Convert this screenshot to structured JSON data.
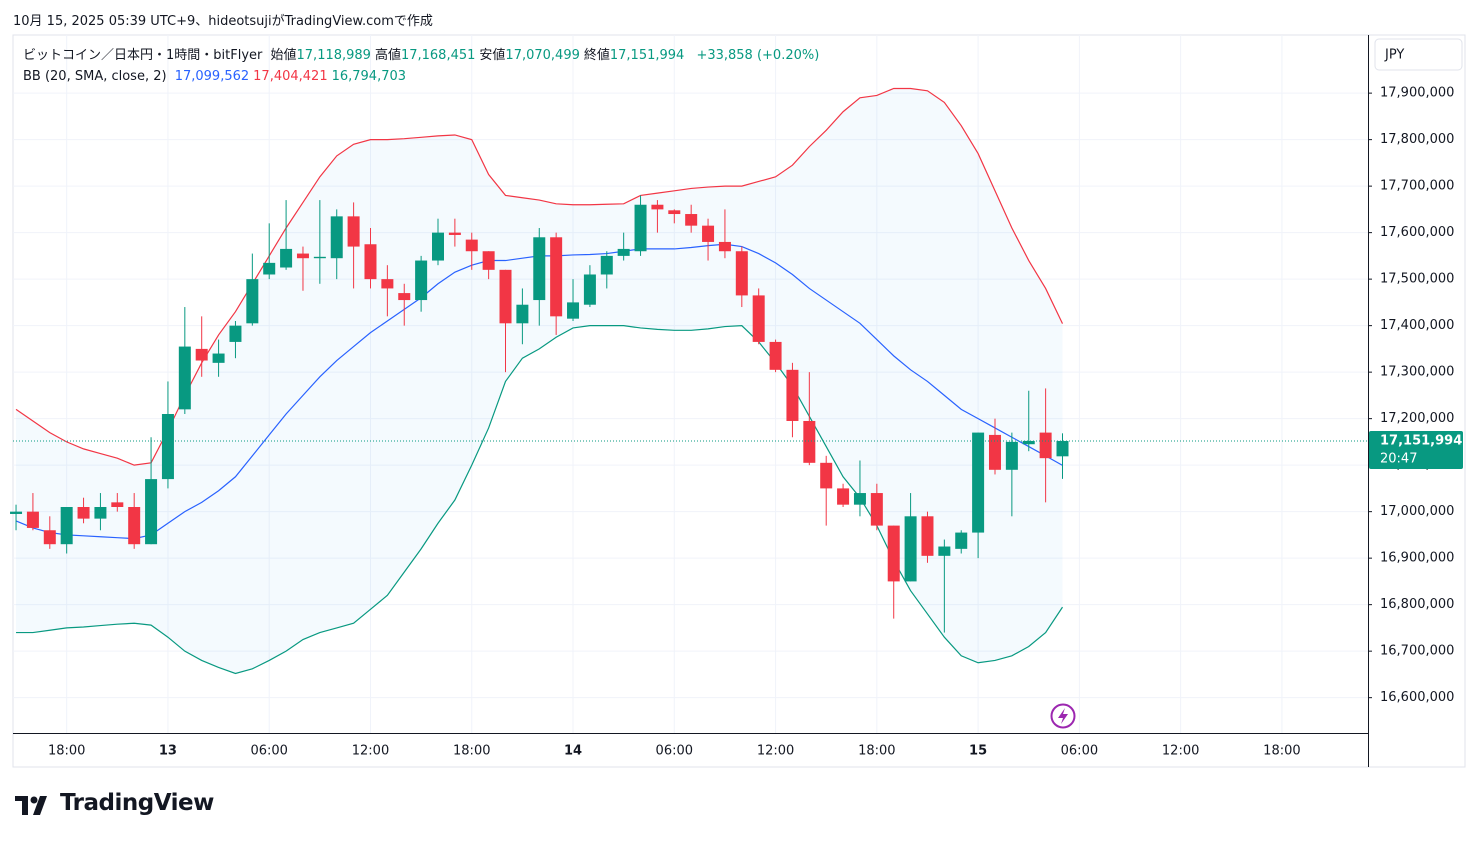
{
  "header": "10月 15, 2025 05:39 UTC+9、hideotsujiがTradingView.comで作成",
  "footer_logo": "TradingView",
  "chart_data": {
    "type": "candlestick",
    "title": "ビットコイン／日本円・1時間・bitFlyer",
    "ohlc_legend": [
      {
        "name": "始値",
        "label": "17,118,989"
      },
      {
        "name": "高値",
        "label": "17,168,451"
      },
      {
        "name": "安値",
        "label": "17,070,499"
      },
      {
        "name": "終値",
        "label": "17,151,994"
      }
    ],
    "change_label": "+33,858 (+0.20%)",
    "currency": "JPY",
    "open": [
      16995000,
      17000000,
      16960000,
      16930000,
      17010000,
      16985000,
      17020000,
      17010000,
      16930000,
      17070000,
      17220000,
      17350000,
      17320000,
      17365000,
      17405000,
      17510000,
      17525000,
      17555000,
      17545000,
      17545000,
      17635000,
      17575000,
      17500000,
      17470000,
      17455000,
      17540000,
      17600000,
      17585000,
      17560000,
      17520000,
      17405000,
      17455000,
      17590000,
      17415000,
      17445000,
      17510000,
      17550000,
      17560000,
      17660000,
      17648000,
      17640000,
      17615000,
      17580000,
      17560000,
      17465000,
      17365000,
      17305000,
      17195000,
      17105000,
      17050000,
      17015000,
      17040000,
      16970000,
      16850000,
      16990000,
      16905000,
      16920000,
      16955000,
      17165000,
      17090000,
      17145000,
      17170000,
      17118989
    ],
    "high": [
      17015000,
      17040000,
      16990000,
      17010000,
      17030000,
      17040000,
      17040000,
      17040000,
      17160000,
      17280000,
      17440000,
      17420000,
      17370000,
      17410000,
      17555000,
      17620000,
      17670000,
      17570000,
      17670000,
      17650000,
      17665000,
      17610000,
      17530000,
      17490000,
      17550000,
      17630000,
      17630000,
      17600000,
      17560000,
      17520000,
      17480000,
      17610000,
      17600000,
      17500000,
      17530000,
      17560000,
      17600000,
      17680000,
      17670000,
      17650000,
      17660000,
      17630000,
      17650000,
      17570000,
      17480000,
      17370000,
      17320000,
      17300000,
      17120000,
      17060000,
      17110000,
      17060000,
      16970000,
      17040000,
      17000000,
      16940000,
      16960000,
      17170000,
      17200000,
      17170000,
      17260000,
      17265000,
      17168451
    ],
    "low": [
      16960000,
      16960000,
      16920000,
      16910000,
      16975000,
      16960000,
      17000000,
      16920000,
      16930000,
      17050000,
      17210000,
      17290000,
      17290000,
      17330000,
      17400000,
      17500000,
      17520000,
      17475000,
      17490000,
      17500000,
      17480000,
      17480000,
      17420000,
      17400000,
      17430000,
      17530000,
      17570000,
      17520000,
      17500000,
      17300000,
      17360000,
      17400000,
      17380000,
      17410000,
      17440000,
      17480000,
      17540000,
      17550000,
      17600000,
      17620000,
      17600000,
      17540000,
      17545000,
      17440000,
      17360000,
      17300000,
      17160000,
      17100000,
      16970000,
      17010000,
      16990000,
      16960000,
      16770000,
      16850000,
      16890000,
      16740000,
      16910000,
      16900000,
      17080000,
      16990000,
      17130000,
      17020000,
      17070499
    ],
    "close": [
      17000000,
      16965000,
      16930000,
      17010000,
      16985000,
      17010000,
      17010000,
      16930000,
      17070000,
      17210000,
      17355000,
      17325000,
      17340000,
      17400000,
      17500000,
      17535000,
      17565000,
      17545000,
      17548000,
      17635000,
      17570000,
      17500000,
      17480000,
      17455000,
      17540000,
      17600000,
      17595000,
      17560000,
      17520000,
      17405000,
      17445000,
      17590000,
      17420000,
      17450000,
      17510000,
      17550000,
      17565000,
      17660000,
      17650000,
      17640000,
      17615000,
      17580000,
      17560000,
      17465000,
      17365000,
      17305000,
      17195000,
      17105000,
      17050000,
      17015000,
      17040000,
      16970000,
      16850000,
      16990000,
      16905000,
      16925000,
      16955000,
      17170000,
      17090000,
      17150000,
      17152000,
      17115000,
      17151994
    ],
    "up_color": "#089981",
    "down_color": "#f23645",
    "indicator": {
      "name": "BB (20, SMA, close, 2)",
      "value_labels": [
        "17,099,562",
        "17,404,421",
        "16,794,703"
      ],
      "fill_color": "#2196f3",
      "series": [
        {
          "color": "#2962ff",
          "values": [
            16980000,
            16965000,
            16955000,
            16950000,
            16948000,
            16946000,
            16944000,
            16942000,
            16950000,
            16975000,
            17000000,
            17020000,
            17045000,
            17075000,
            17120000,
            17165000,
            17210000,
            17250000,
            17290000,
            17325000,
            17355000,
            17385000,
            17410000,
            17435000,
            17460000,
            17490000,
            17515000,
            17530000,
            17540000,
            17540000,
            17545000,
            17550000,
            17550000,
            17552000,
            17553000,
            17555000,
            17560000,
            17565000,
            17565000,
            17565000,
            17568000,
            17572000,
            17575000,
            17570000,
            17555000,
            17535000,
            17510000,
            17480000,
            17455000,
            17430000,
            17405000,
            17370000,
            17335000,
            17305000,
            17280000,
            17250000,
            17220000,
            17200000,
            17180000,
            17160000,
            17140000,
            17120000,
            17099562
          ]
        },
        {
          "color": "#f23645",
          "values": [
            17220000,
            17195000,
            17170000,
            17150000,
            17135000,
            17125000,
            17115000,
            17100000,
            17105000,
            17175000,
            17250000,
            17320000,
            17380000,
            17430000,
            17490000,
            17550000,
            17610000,
            17665000,
            17720000,
            17765000,
            17790000,
            17800000,
            17800000,
            17802000,
            17805000,
            17808000,
            17810000,
            17800000,
            17725000,
            17680000,
            17675000,
            17670000,
            17662000,
            17660000,
            17660000,
            17661000,
            17662000,
            17680000,
            17685000,
            17690000,
            17695000,
            17698000,
            17700000,
            17700000,
            17710000,
            17720000,
            17745000,
            17785000,
            17820000,
            17860000,
            17890000,
            17895000,
            17910000,
            17910000,
            17905000,
            17880000,
            17830000,
            17770000,
            17690000,
            17610000,
            17540000,
            17480000,
            17404421
          ]
        },
        {
          "color": "#089981",
          "values": [
            16740000,
            16740000,
            16745000,
            16750000,
            16752000,
            16755000,
            16758000,
            16760000,
            16756000,
            16730000,
            16700000,
            16680000,
            16665000,
            16652000,
            16662000,
            16680000,
            16700000,
            16725000,
            16740000,
            16750000,
            16760000,
            16790000,
            16820000,
            16870000,
            16920000,
            16975000,
            17025000,
            17100000,
            17180000,
            17280000,
            17330000,
            17350000,
            17375000,
            17395000,
            17400000,
            17400000,
            17400000,
            17395000,
            17392000,
            17390000,
            17390000,
            17393000,
            17398000,
            17400000,
            17365000,
            17320000,
            17270000,
            17205000,
            17140000,
            17075000,
            17030000,
            16970000,
            16895000,
            16830000,
            16780000,
            16730000,
            16690000,
            16675000,
            16680000,
            16690000,
            16710000,
            16740000,
            16794703
          ]
        }
      ]
    },
    "last_price": {
      "value": 17151994,
      "label": "17,151,994",
      "countdown": "20:47"
    },
    "xlim": [
      -0.18,
      80.1
    ],
    "xticks": [
      {
        "value": 3,
        "label": "18:00"
      },
      {
        "value": 9,
        "label": "13"
      },
      {
        "value": 15,
        "label": "06:00"
      },
      {
        "value": 21,
        "label": "12:00"
      },
      {
        "value": 27,
        "label": "18:00"
      },
      {
        "value": 33,
        "label": "14"
      },
      {
        "value": 39,
        "label": "06:00"
      },
      {
        "value": 45,
        "label": "12:00"
      },
      {
        "value": 51,
        "label": "18:00"
      },
      {
        "value": 57,
        "label": "15"
      },
      {
        "value": 63,
        "label": "06:00"
      },
      {
        "value": 69,
        "label": "12:00"
      },
      {
        "value": 75,
        "label": "18:00"
      }
    ],
    "ylim": [
      16524000,
      18025000
    ],
    "yticks": [
      {
        "value": 16600000,
        "label": "16,600,000"
      },
      {
        "value": 16700000,
        "label": "16,700,000"
      },
      {
        "value": 16800000,
        "label": "16,800,000"
      },
      {
        "value": 16900000,
        "label": "16,900,000"
      },
      {
        "value": 17000000,
        "label": "17,000,000"
      },
      {
        "value": 17100000,
        "label": "17,100,000"
      },
      {
        "value": 17200000,
        "label": "17,200,000"
      },
      {
        "value": 17300000,
        "label": "17,300,000"
      },
      {
        "value": 17400000,
        "label": "17,400,000"
      },
      {
        "value": 17500000,
        "label": "17,500,000"
      },
      {
        "value": 17600000,
        "label": "17,600,000"
      },
      {
        "value": 17700000,
        "label": "17,700,000"
      },
      {
        "value": 17800000,
        "label": "17,800,000"
      },
      {
        "value": 17900000,
        "label": "17,900,000"
      }
    ],
    "grid": true
  }
}
